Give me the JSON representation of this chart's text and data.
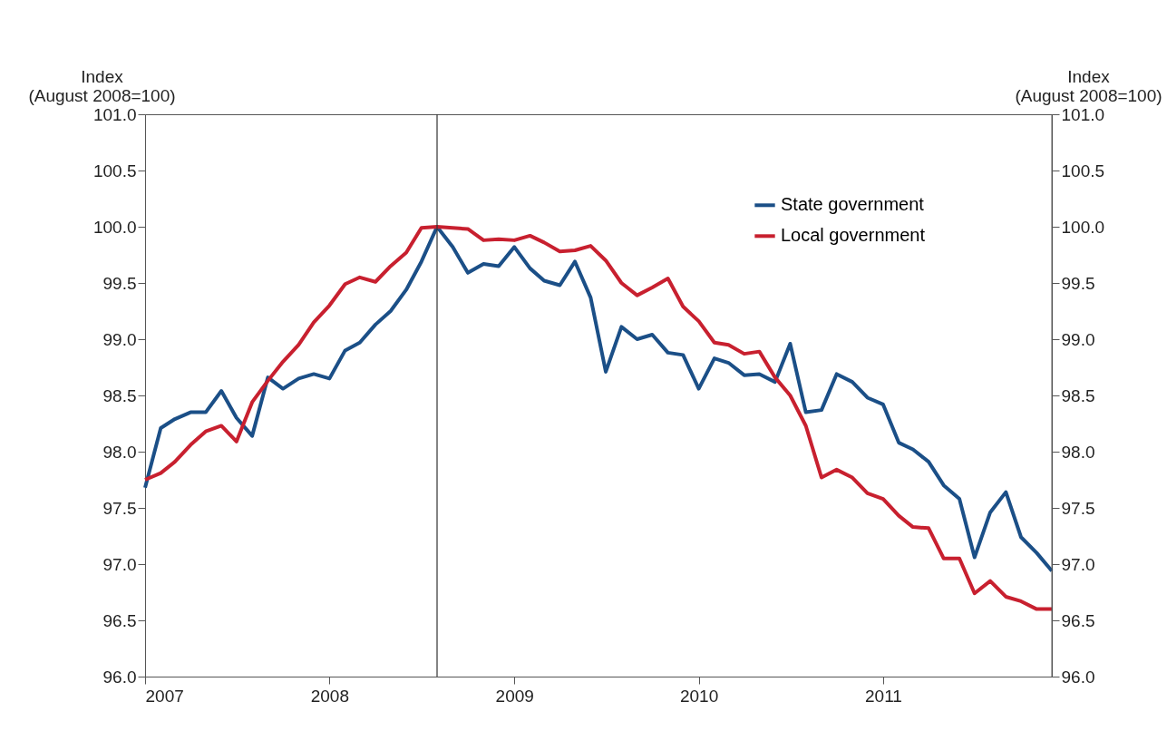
{
  "chart_data": {
    "type": "line",
    "ylabel": "Index\n(August 2008=100)",
    "y2label": "Index\n(August 2008=100)",
    "x": [
      "2007-01",
      "2007-02",
      "2007-03",
      "2007-04",
      "2007-05",
      "2007-06",
      "2007-07",
      "2007-08",
      "2007-09",
      "2007-10",
      "2007-11",
      "2007-12",
      "2008-01",
      "2008-02",
      "2008-03",
      "2008-04",
      "2008-05",
      "2008-06",
      "2008-07",
      "2008-08",
      "2008-09",
      "2008-10",
      "2008-11",
      "2008-12",
      "2009-01",
      "2009-02",
      "2009-03",
      "2009-04",
      "2009-05",
      "2009-06",
      "2009-07",
      "2009-08",
      "2009-09",
      "2009-10",
      "2009-11",
      "2009-12",
      "2010-01",
      "2010-02",
      "2010-03",
      "2010-04",
      "2010-05",
      "2010-06",
      "2010-07",
      "2010-08",
      "2010-09",
      "2010-10",
      "2010-11",
      "2010-12",
      "2011-01",
      "2011-02",
      "2011-03",
      "2011-04",
      "2011-05",
      "2011-06",
      "2011-07",
      "2011-08",
      "2011-09",
      "2011-10",
      "2011-11",
      "2011-12"
    ],
    "series": [
      {
        "name": "State government",
        "color": "#1b4f87",
        "values": [
          97.68,
          98.21,
          98.29,
          98.35,
          98.35,
          98.54,
          98.3,
          98.14,
          98.66,
          98.56,
          98.65,
          98.69,
          98.65,
          98.9,
          98.97,
          99.13,
          99.25,
          99.44,
          99.69,
          100.0,
          99.82,
          99.59,
          99.67,
          99.65,
          99.82,
          99.63,
          99.52,
          99.48,
          99.69,
          99.37,
          98.71,
          99.11,
          99.0,
          99.04,
          98.88,
          98.86,
          98.56,
          98.83,
          98.79,
          98.68,
          98.69,
          98.62,
          98.96,
          98.35,
          98.37,
          98.69,
          98.62,
          98.48,
          98.42,
          98.08,
          98.02,
          97.91,
          97.7,
          97.58,
          97.06,
          97.46,
          97.64,
          97.24,
          97.1,
          96.94
        ]
      },
      {
        "name": "Local government",
        "color": "#c8202f",
        "values": [
          97.75,
          97.81,
          97.91,
          98.06,
          98.18,
          98.23,
          98.09,
          98.44,
          98.63,
          98.8,
          98.95,
          99.15,
          99.3,
          99.49,
          99.55,
          99.51,
          99.65,
          99.77,
          99.99,
          100.0,
          99.99,
          99.98,
          99.88,
          99.89,
          99.88,
          99.92,
          99.86,
          99.78,
          99.79,
          99.83,
          99.7,
          99.5,
          99.39,
          99.46,
          99.54,
          99.29,
          99.16,
          98.97,
          98.95,
          98.87,
          98.89,
          98.66,
          98.5,
          98.23,
          97.77,
          97.84,
          97.77,
          97.63,
          97.58,
          97.43,
          97.33,
          97.32,
          97.05,
          97.05,
          96.74,
          96.85,
          96.71,
          96.67,
          96.6,
          96.6
        ]
      }
    ],
    "xlim": [
      "2007-01",
      "2011-12"
    ],
    "xticks": [
      {
        "value": "2007-01",
        "label": "2007"
      },
      {
        "value": "2008-01",
        "label": "2008"
      },
      {
        "value": "2009-01",
        "label": "2009"
      },
      {
        "value": "2010-01",
        "label": "2010"
      },
      {
        "value": "2011-01",
        "label": "2011"
      }
    ],
    "ylim": [
      96.0,
      101.0
    ],
    "yticks": [
      {
        "value": 96,
        "label": "96.0"
      },
      {
        "value": 96.5,
        "label": "96.5"
      },
      {
        "value": 97,
        "label": "97.0"
      },
      {
        "value": 97.5,
        "label": "97.5"
      },
      {
        "value": 98,
        "label": "98.0"
      },
      {
        "value": 98.5,
        "label": "98.5"
      },
      {
        "value": 99,
        "label": "99.0"
      },
      {
        "value": 99.5,
        "label": "99.5"
      },
      {
        "value": 100,
        "label": "100.0"
      },
      {
        "value": 100.5,
        "label": "100.5"
      },
      {
        "value": 101,
        "label": "101.0"
      }
    ],
    "y2lim": [
      96.0,
      101.0
    ],
    "y2ticks": [
      {
        "value": 96,
        "label": "96.0"
      },
      {
        "value": 96.5,
        "label": "96.5"
      },
      {
        "value": 97,
        "label": "97.0"
      },
      {
        "value": 97.5,
        "label": "97.5"
      },
      {
        "value": 98,
        "label": "98.0"
      },
      {
        "value": 98.5,
        "label": "98.5"
      },
      {
        "value": 99,
        "label": "99.0"
      },
      {
        "value": 99.5,
        "label": "99.5"
      },
      {
        "value": 100,
        "label": "100.0"
      },
      {
        "value": 100.5,
        "label": "100.5"
      },
      {
        "value": 101,
        "label": "101.0"
      }
    ],
    "ref_lines": [
      {
        "axis": "x",
        "value": "2008-08",
        "color": "#333333"
      }
    ],
    "grid": false,
    "legend": "top right",
    "marker": "none",
    "line_style": "solid"
  }
}
